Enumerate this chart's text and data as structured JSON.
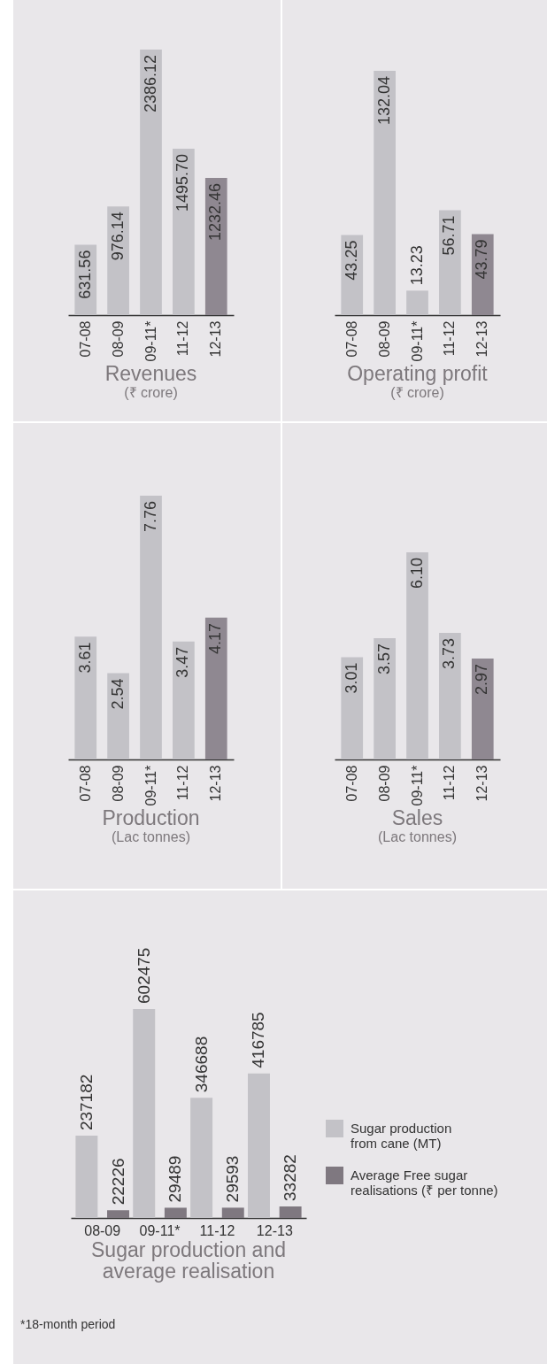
{
  "chart_data": [
    {
      "type": "bar",
      "title": "Revenues",
      "subtitle": "(₹ crore)",
      "categories": [
        "07-08",
        "08-09",
        "09-11*",
        "11-12",
        "12-13"
      ],
      "values": [
        631.56,
        976.14,
        2386.12,
        1495.7,
        1232.46
      ],
      "value_labels": [
        "631.56",
        "976.14",
        "2386.12",
        "1495.70",
        "1232.46"
      ],
      "colors": [
        "#c3c2c7",
        "#c3c2c7",
        "#c3c2c7",
        "#c3c2c7",
        "#8f8891"
      ]
    },
    {
      "type": "bar",
      "title": "Operating profit",
      "subtitle": "(₹ crore)",
      "categories": [
        "07-08",
        "08-09",
        "09-11*",
        "11-12",
        "12-13"
      ],
      "values": [
        43.25,
        132.04,
        13.23,
        56.71,
        43.79
      ],
      "value_labels": [
        "43.25",
        "132.04",
        "13.23",
        "56.71",
        "43.79"
      ],
      "colors": [
        "#c3c2c7",
        "#c3c2c7",
        "#c3c2c7",
        "#c3c2c7",
        "#8f8891"
      ]
    },
    {
      "type": "bar",
      "title": "Production",
      "subtitle": "(Lac tonnes)",
      "categories": [
        "07-08",
        "08-09",
        "09-11*",
        "11-12",
        "12-13"
      ],
      "values": [
        3.61,
        2.54,
        7.76,
        3.47,
        4.17
      ],
      "value_labels": [
        "3.61",
        "2.54",
        "7.76",
        "3.47",
        "4.17"
      ],
      "colors": [
        "#c3c2c7",
        "#c3c2c7",
        "#c3c2c7",
        "#c3c2c7",
        "#8f8891"
      ]
    },
    {
      "type": "bar",
      "title": "Sales",
      "subtitle": "(Lac tonnes)",
      "categories": [
        "07-08",
        "08-09",
        "09-11*",
        "11-12",
        "12-13"
      ],
      "values": [
        3.01,
        3.57,
        6.1,
        3.73,
        2.97
      ],
      "value_labels": [
        "3.01",
        "3.57",
        "6.10",
        "3.73",
        "2.97"
      ],
      "colors": [
        "#c3c2c7",
        "#c3c2c7",
        "#c3c2c7",
        "#c3c2c7",
        "#8f8891"
      ]
    },
    {
      "type": "bar",
      "title": "Sugar production and average realisation",
      "categories": [
        "08-09",
        "09-11*",
        "11-12",
        "12-13"
      ],
      "legend": "right",
      "annotations": [
        "*18-month period"
      ],
      "series": [
        {
          "name": "Sugar production from cane (MT)",
          "color": "#c3c2c7",
          "values": [
            237182,
            602475,
            346688,
            416785
          ],
          "value_labels": [
            "237182",
            "602475",
            "346688",
            "416785"
          ]
        },
        {
          "name": "Average Free sugar realisations (₹ per tonne)",
          "color": "#7f7880",
          "values": [
            22226,
            29489,
            29593,
            33282
          ],
          "value_labels": [
            "22226",
            "29489",
            "29593",
            "33282"
          ]
        }
      ]
    }
  ]
}
